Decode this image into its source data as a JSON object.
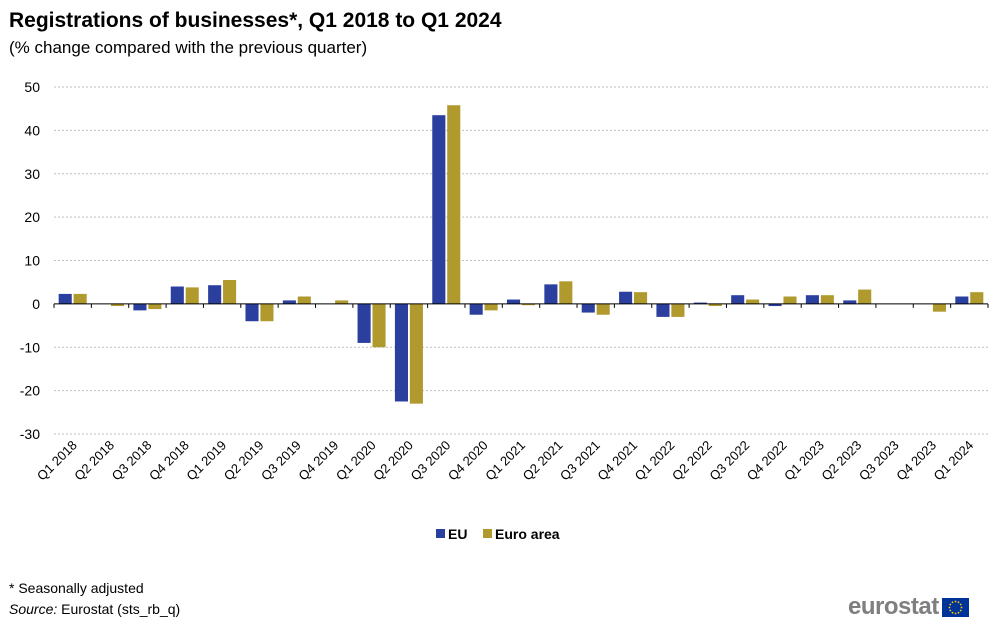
{
  "header": {
    "title": "Registrations of businesses*, Q1 2018 to Q1 2024",
    "subtitle": "(% change compared with the previous quarter)"
  },
  "footer": {
    "note": "* Seasonally adjusted",
    "source_label": "Source:",
    "source_text": " Eurostat (sts_rb_q)",
    "logo_text": "eurostat"
  },
  "colors": {
    "eu": "#2B3F9E",
    "euro_area": "#B09A2E",
    "grid": "#bfbfbf",
    "flag_blue": "#003399",
    "flag_star": "#FFCC00"
  },
  "chart_data": {
    "type": "bar",
    "title": "Registrations of businesses*, Q1 2018 to Q1 2024",
    "subtitle": "(% change compared with the previous quarter)",
    "xlabel": "",
    "ylabel": "",
    "ylim": [
      -30,
      50
    ],
    "yticks": [
      50,
      40,
      30,
      20,
      10,
      0,
      -10,
      -20,
      -30
    ],
    "grid": true,
    "legend_position": "bottom-center",
    "categories": [
      "Q1 2018",
      "Q2 2018",
      "Q3 2018",
      "Q4 2018",
      "Q1 2019",
      "Q2 2019",
      "Q3 2019",
      "Q4 2019",
      "Q1 2020",
      "Q2 2020",
      "Q3 2020",
      "Q4 2020",
      "Q1 2021",
      "Q2 2021",
      "Q3 2021",
      "Q4 2021",
      "Q1 2022",
      "Q2 2022",
      "Q3 2022",
      "Q4 2022",
      "Q1 2023",
      "Q2 2023",
      "Q3 2023",
      "Q4 2023",
      "Q1 2024"
    ],
    "series": [
      {
        "name": "EU",
        "values": [
          2.3,
          0.0,
          -1.5,
          4.0,
          4.3,
          -4.0,
          0.8,
          0.0,
          -9.0,
          -22.5,
          43.5,
          -2.5,
          1.0,
          4.5,
          -2.0,
          2.8,
          -3.0,
          0.3,
          2.0,
          -0.5,
          2.0,
          0.8,
          0.0,
          0.0,
          1.7
        ]
      },
      {
        "name": "Euro area",
        "values": [
          2.3,
          -0.5,
          -1.2,
          3.8,
          5.5,
          -4.0,
          1.7,
          0.8,
          -10.0,
          -23.0,
          45.8,
          -1.5,
          -0.3,
          5.2,
          -2.5,
          2.7,
          -3.0,
          -0.5,
          1.0,
          1.7,
          2.0,
          3.3,
          0.0,
          -1.8,
          2.7
        ]
      }
    ]
  }
}
